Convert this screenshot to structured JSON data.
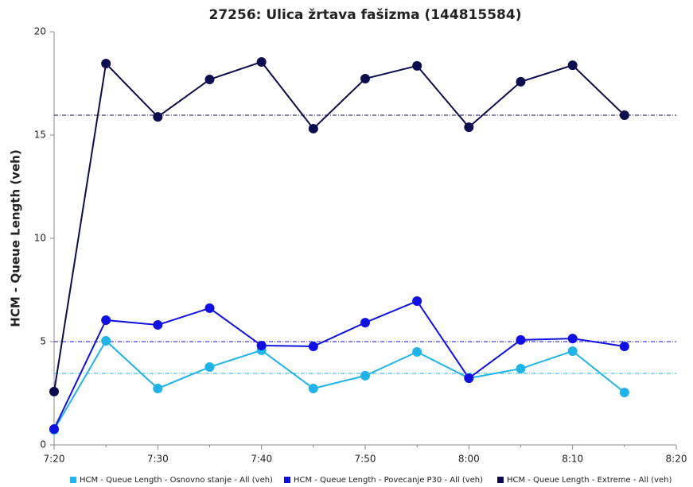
{
  "chart_data": {
    "type": "line",
    "title": "27256: Ulica žrtava fašizma (144815584)",
    "y_label": "HCM - Queue Length (veh)",
    "categories": [
      "7:20",
      null,
      "7:30",
      null,
      "7:40",
      null,
      "7:50",
      null,
      "8:00",
      null,
      "8:10",
      null,
      "8:20"
    ],
    "series": [
      {
        "name": "HCM - Queue Length - Osnovno stanje - All (veh)",
        "color": "#1fb3ea",
        "values": [
          0.73,
          5.04,
          2.73,
          3.77,
          4.58,
          2.73,
          3.35,
          4.5,
          3.23,
          3.69,
          4.54,
          2.54,
          null
        ]
      },
      {
        "name": "HCM - Queue Length - Povecanje P30 - All (veh)",
        "color": "#1010e0",
        "values": [
          0.77,
          6.04,
          5.81,
          6.62,
          4.81,
          4.77,
          5.92,
          6.96,
          3.23,
          5.08,
          5.15,
          4.77,
          null
        ]
      },
      {
        "name": "HCM - Queue Length - Extreme - All (veh)",
        "color": "#0c0c4e",
        "values": [
          2.58,
          18.46,
          15.88,
          17.69,
          18.54,
          15.31,
          17.73,
          18.35,
          15.38,
          17.58,
          18.38,
          15.96,
          null
        ]
      }
    ],
    "reference_lines": [
      {
        "value": 3.46,
        "color": "#1fb3ea"
      },
      {
        "value": 5.0,
        "color": "#1010e0"
      },
      {
        "value": 15.96,
        "color": "#0c0c4e"
      }
    ],
    "ylim": [
      0,
      20
    ],
    "yticks": [
      0,
      5,
      10,
      15,
      20
    ]
  }
}
